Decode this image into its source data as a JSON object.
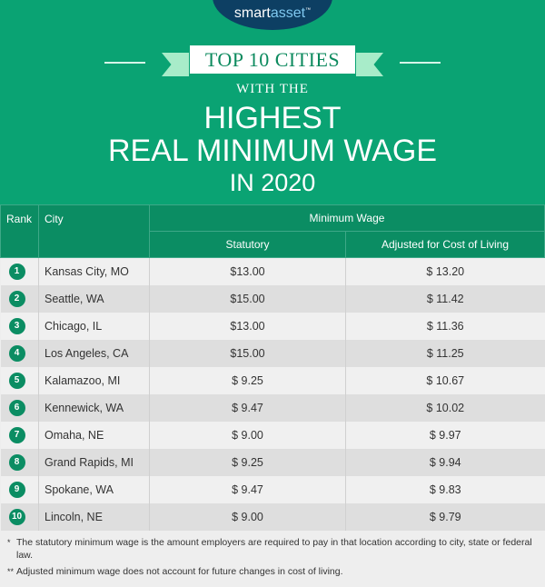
{
  "brand": {
    "logo_smart": "smart",
    "logo_asset": "asset",
    "tm": "™"
  },
  "title": {
    "ribbon": "TOP 10 CITIES",
    "with": "WITH THE",
    "line1": "HIGHEST",
    "line2": "REAL MINIMUM WAGE",
    "line3": "IN 2020"
  },
  "table": {
    "headers": {
      "rank": "Rank",
      "city": "City",
      "group": "Minimum Wage",
      "statutory": "Statutory",
      "adjusted": "Adjusted for Cost of Living"
    },
    "rows": [
      {
        "rank": "1",
        "city": "Kansas City, MO",
        "statutory": "$13.00",
        "adjusted": "$ 13.20"
      },
      {
        "rank": "2",
        "city": "Seattle, WA",
        "statutory": "$15.00",
        "adjusted": "$ 11.42"
      },
      {
        "rank": "3",
        "city": "Chicago, IL",
        "statutory": "$13.00",
        "adjusted": "$ 11.36"
      },
      {
        "rank": "4",
        "city": "Los Angeles, CA",
        "statutory": "$15.00",
        "adjusted": "$ 11.25"
      },
      {
        "rank": "5",
        "city": "Kalamazoo, MI",
        "statutory": "$ 9.25",
        "adjusted": "$ 10.67"
      },
      {
        "rank": "6",
        "city": "Kennewick, WA",
        "statutory": "$ 9.47",
        "adjusted": "$ 10.02"
      },
      {
        "rank": "7",
        "city": "Omaha, NE",
        "statutory": "$ 9.00",
        "adjusted": "$ 9.97"
      },
      {
        "rank": "8",
        "city": "Grand Rapids, MI",
        "statutory": "$ 9.25",
        "adjusted": "$ 9.94"
      },
      {
        "rank": "9",
        "city": "Spokane, WA",
        "statutory": "$ 9.47",
        "adjusted": "$ 9.83"
      },
      {
        "rank": "10",
        "city": "Lincoln, NE",
        "statutory": "$ 9.00",
        "adjusted": "$ 9.79"
      }
    ]
  },
  "notes": [
    {
      "marker": "*",
      "text": "The statutory minimum wage is the amount employers are required to pay in that location according to city, state or federal law."
    },
    {
      "marker": "**",
      "text": "Adjusted minimum wage does not account for future changes in cost of living."
    }
  ],
  "colors": {
    "header_green": "#0aa373",
    "table_green": "#0b8d63",
    "logo_navy": "#0d3f63",
    "ribbon_mint": "#a8ecc9"
  },
  "chart_data": {
    "type": "table",
    "title": "Top 10 Cities With the Highest Real Minimum Wage in 2020",
    "columns": [
      "Rank",
      "City",
      "Statutory",
      "Adjusted for Cost of Living"
    ],
    "categories": [
      "Kansas City, MO",
      "Seattle, WA",
      "Chicago, IL",
      "Los Angeles, CA",
      "Kalamazoo, MI",
      "Kennewick, WA",
      "Omaha, NE",
      "Grand Rapids, MI",
      "Spokane, WA",
      "Lincoln, NE"
    ],
    "series": [
      {
        "name": "Statutory",
        "values": [
          13.0,
          15.0,
          13.0,
          15.0,
          9.25,
          9.47,
          9.0,
          9.25,
          9.47,
          9.0
        ]
      },
      {
        "name": "Adjusted for Cost of Living",
        "values": [
          13.2,
          11.42,
          11.36,
          11.25,
          10.67,
          10.02,
          9.97,
          9.94,
          9.83,
          9.79
        ]
      }
    ]
  }
}
